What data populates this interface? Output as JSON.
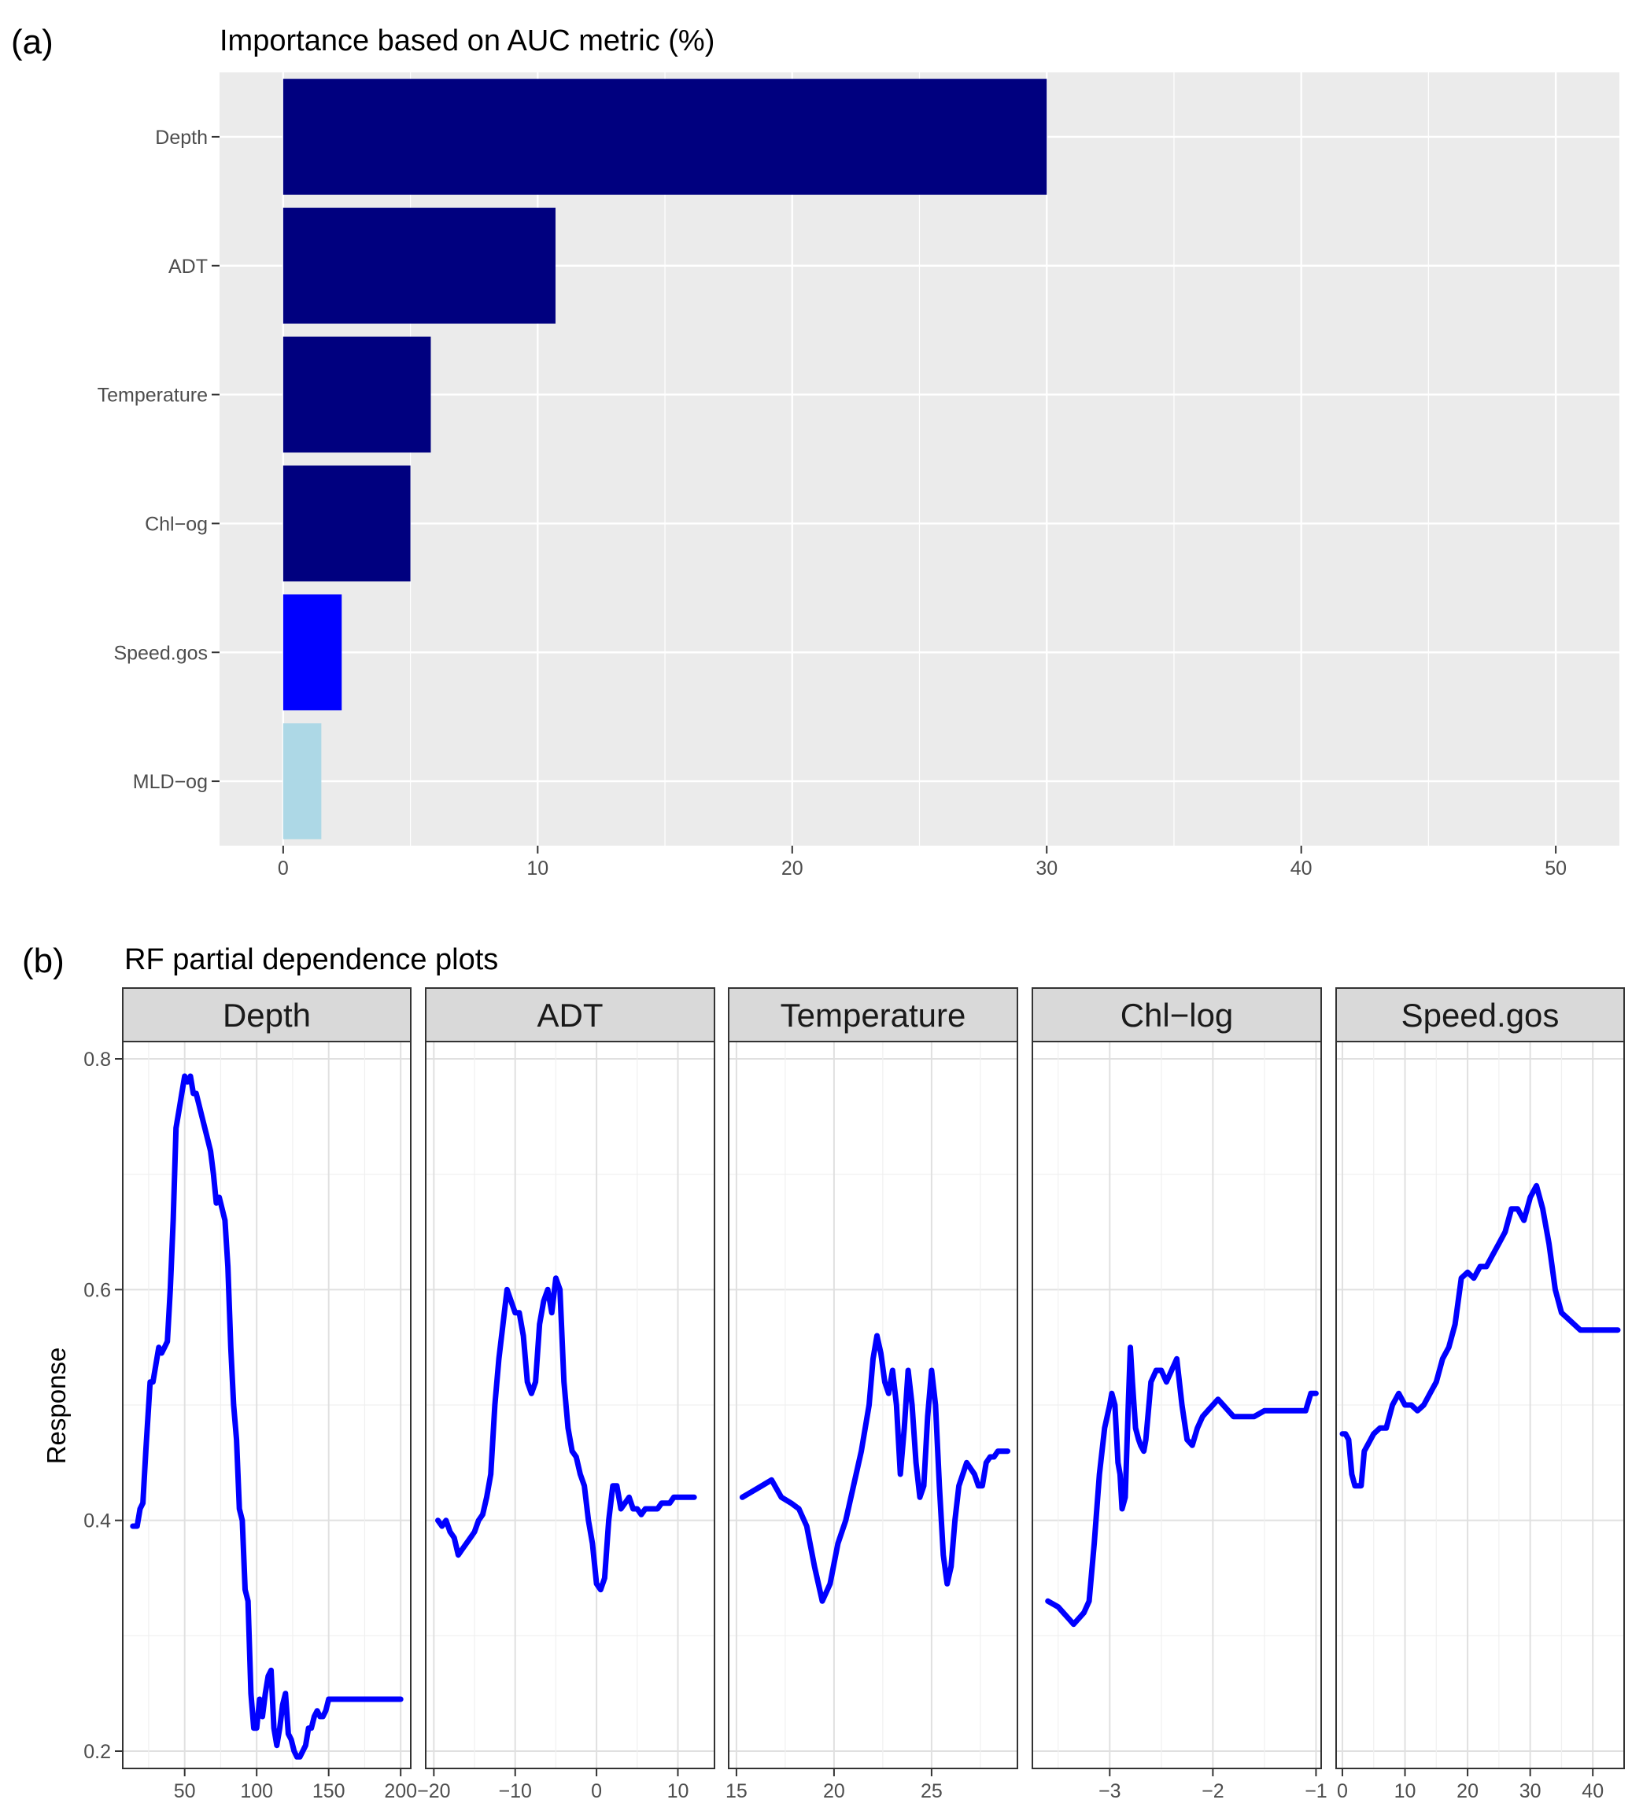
{
  "panel_a_label": "(a)",
  "panel_b_label": "(b)",
  "colors": {
    "navy": "#00007f",
    "blue": "#0000ff",
    "lightblue": "#add8e6",
    "line": "#0000ff",
    "panel_bg": "#ebebeb",
    "strip_bg": "#d9d9d9"
  },
  "chart_data": [
    {
      "type": "bar",
      "orientation": "horizontal",
      "title": "Importance based on AUC metric (%)",
      "categories": [
        "Depth",
        "ADT",
        "Temperature",
        "Chl−og",
        "Speed.gos",
        "MLD−og"
      ],
      "values": [
        30.0,
        10.7,
        5.8,
        5.0,
        2.3,
        1.5
      ],
      "bar_colors": [
        "navy",
        "navy",
        "navy",
        "navy",
        "blue",
        "lightblue"
      ],
      "xlim": [
        -2.5,
        52.5
      ],
      "xticks": [
        0,
        10,
        20,
        30,
        40,
        50
      ],
      "grid": true
    },
    {
      "type": "line",
      "title": "RF partial dependence plots",
      "ylabel": "Response",
      "ylim": [
        0.185,
        0.815
      ],
      "yticks": [
        0.2,
        0.4,
        0.6,
        0.8
      ],
      "grid": true,
      "facets": [
        {
          "name": "Depth",
          "xlim": [
            7,
            207
          ],
          "xticks": [
            50,
            100,
            150,
            200
          ],
          "x": [
            14,
            17,
            19,
            21,
            23,
            26,
            28,
            30,
            32,
            34,
            36,
            38,
            40,
            42,
            44,
            46,
            48,
            50,
            52,
            54,
            56,
            58,
            60,
            62,
            64,
            66,
            68,
            70,
            72,
            74,
            76,
            78,
            80,
            82,
            84,
            86,
            88,
            90,
            92,
            94,
            96,
            98,
            100,
            102,
            104,
            106,
            108,
            110,
            112,
            114,
            116,
            118,
            120,
            122,
            124,
            126,
            128,
            130,
            132,
            134,
            136,
            138,
            140,
            142,
            144,
            146,
            148,
            150,
            152,
            154,
            156,
            158,
            160,
            162,
            165,
            170,
            175,
            180,
            185,
            190,
            195,
            200
          ],
          "y": [
            0.395,
            0.395,
            0.41,
            0.415,
            0.46,
            0.52,
            0.52,
            0.535,
            0.55,
            0.545,
            0.55,
            0.555,
            0.6,
            0.66,
            0.74,
            0.755,
            0.77,
            0.785,
            0.78,
            0.785,
            0.77,
            0.77,
            0.76,
            0.75,
            0.74,
            0.73,
            0.72,
            0.7,
            0.675,
            0.68,
            0.67,
            0.66,
            0.62,
            0.55,
            0.5,
            0.47,
            0.41,
            0.4,
            0.34,
            0.33,
            0.25,
            0.22,
            0.22,
            0.245,
            0.23,
            0.25,
            0.265,
            0.27,
            0.22,
            0.205,
            0.22,
            0.24,
            0.25,
            0.215,
            0.21,
            0.2,
            0.195,
            0.195,
            0.2,
            0.205,
            0.22,
            0.22,
            0.23,
            0.235,
            0.23,
            0.23,
            0.235,
            0.245,
            0.245,
            0.245,
            0.245,
            0.245,
            0.245,
            0.245,
            0.245,
            0.245,
            0.245,
            0.245,
            0.245,
            0.245,
            0.245,
            0.245
          ]
        },
        {
          "name": "ADT",
          "xlim": [
            -21,
            14.5
          ],
          "xticks": [
            -20,
            -10,
            0,
            10
          ],
          "x": [
            -19.5,
            -19,
            -18.5,
            -18,
            -17.5,
            -17,
            -16.5,
            -16,
            -15.5,
            -15,
            -14.5,
            -14,
            -13.5,
            -13,
            -12.5,
            -12,
            -11.5,
            -11,
            -10.5,
            -10,
            -9.5,
            -9,
            -8.5,
            -8,
            -7.5,
            -7,
            -6.5,
            -6,
            -5.5,
            -5,
            -4.5,
            -4,
            -3.5,
            -3,
            -2.5,
            -2,
            -1.5,
            -1,
            -0.5,
            0,
            0.5,
            1,
            1.5,
            2,
            2.5,
            3,
            3.5,
            4,
            4.5,
            5,
            5.5,
            6,
            6.5,
            7,
            7.5,
            8,
            8.5,
            9,
            9.5,
            10,
            10.5,
            11,
            11.5,
            12
          ],
          "y": [
            0.4,
            0.395,
            0.4,
            0.39,
            0.385,
            0.37,
            0.375,
            0.38,
            0.385,
            0.39,
            0.4,
            0.405,
            0.42,
            0.44,
            0.5,
            0.54,
            0.57,
            0.6,
            0.59,
            0.58,
            0.58,
            0.56,
            0.52,
            0.51,
            0.52,
            0.57,
            0.59,
            0.6,
            0.58,
            0.61,
            0.6,
            0.52,
            0.48,
            0.46,
            0.455,
            0.44,
            0.43,
            0.4,
            0.38,
            0.345,
            0.34,
            0.35,
            0.4,
            0.43,
            0.43,
            0.41,
            0.415,
            0.42,
            0.41,
            0.41,
            0.405,
            0.41,
            0.41,
            0.41,
            0.41,
            0.415,
            0.415,
            0.415,
            0.42,
            0.42,
            0.42,
            0.42,
            0.42,
            0.42
          ]
        },
        {
          "name": "Temperature",
          "xlim": [
            14.6,
            29.4
          ],
          "xticks": [
            15,
            20,
            25
          ],
          "x": [
            15.3,
            15.8,
            16.3,
            16.8,
            17.3,
            17.8,
            18.2,
            18.6,
            19.0,
            19.4,
            19.8,
            20.2,
            20.6,
            21.0,
            21.4,
            21.8,
            22.0,
            22.2,
            22.4,
            22.6,
            22.8,
            23.0,
            23.2,
            23.4,
            23.6,
            23.8,
            24.0,
            24.2,
            24.4,
            24.6,
            24.8,
            25.0,
            25.2,
            25.4,
            25.6,
            25.8,
            26.0,
            26.2,
            26.4,
            26.6,
            26.8,
            27.0,
            27.2,
            27.4,
            27.6,
            27.8,
            28.0,
            28.2,
            28.4,
            28.6,
            28.9
          ],
          "y": [
            0.42,
            0.425,
            0.43,
            0.435,
            0.42,
            0.415,
            0.41,
            0.395,
            0.36,
            0.33,
            0.345,
            0.38,
            0.4,
            0.43,
            0.46,
            0.5,
            0.54,
            0.56,
            0.545,
            0.52,
            0.51,
            0.53,
            0.5,
            0.44,
            0.48,
            0.53,
            0.5,
            0.45,
            0.42,
            0.43,
            0.49,
            0.53,
            0.5,
            0.43,
            0.37,
            0.345,
            0.36,
            0.4,
            0.43,
            0.44,
            0.45,
            0.445,
            0.44,
            0.43,
            0.43,
            0.45,
            0.455,
            0.455,
            0.46,
            0.46,
            0.46
          ],
          "y_shape_fix": [
            0.42,
            0.425,
            0.43,
            0.435,
            0.42,
            0.415,
            0.41,
            0.395,
            0.36,
            0.33,
            0.345,
            0.38,
            0.4,
            0.43,
            0.46,
            0.5,
            0.54,
            0.56,
            0.545,
            0.52,
            0.51,
            0.53,
            0.5,
            0.44,
            0.48,
            0.53,
            0.5,
            0.45,
            0.42,
            0.43,
            0.49,
            0.53,
            0.5,
            0.43,
            0.37,
            0.345,
            0.36,
            0.4,
            0.43,
            0.44,
            0.45,
            0.445,
            0.44,
            0.43,
            0.43,
            0.45,
            0.455,
            0.455,
            0.46,
            0.46,
            0.46
          ]
        },
        {
          "name": "Chl−log",
          "xlim": [
            -3.75,
            -0.95
          ],
          "xticks": [
            -3,
            -2,
            -1
          ],
          "x": [
            -3.6,
            -3.5,
            -3.45,
            -3.4,
            -3.35,
            -3.3,
            -3.25,
            -3.2,
            -3.15,
            -3.1,
            -3.05,
            -3.0,
            -2.98,
            -2.95,
            -2.92,
            -2.9,
            -2.88,
            -2.85,
            -2.82,
            -2.8,
            -2.78,
            -2.75,
            -2.72,
            -2.7,
            -2.67,
            -2.65,
            -2.6,
            -2.55,
            -2.5,
            -2.45,
            -2.4,
            -2.35,
            -2.3,
            -2.25,
            -2.2,
            -2.15,
            -2.1,
            -2.05,
            -2.0,
            -1.95,
            -1.9,
            -1.8,
            -1.7,
            -1.6,
            -1.5,
            -1.4,
            -1.3,
            -1.2,
            -1.1,
            -1.05,
            -1.0
          ],
          "y": [
            0.33,
            0.325,
            0.32,
            0.315,
            0.31,
            0.315,
            0.32,
            0.33,
            0.38,
            0.44,
            0.48,
            0.5,
            0.51,
            0.5,
            0.45,
            0.44,
            0.41,
            0.42,
            0.5,
            0.55,
            0.52,
            0.48,
            0.47,
            0.465,
            0.46,
            0.47,
            0.52,
            0.53,
            0.53,
            0.52,
            0.53,
            0.54,
            0.5,
            0.47,
            0.465,
            0.48,
            0.49,
            0.495,
            0.5,
            0.505,
            0.5,
            0.49,
            0.49,
            0.49,
            0.495,
            0.495,
            0.495,
            0.495,
            0.495,
            0.51,
            0.51
          ]
        },
        {
          "name": "Speed.gos",
          "xlim": [
            -1,
            45
          ],
          "xticks": [
            0,
            10,
            20,
            30,
            40
          ],
          "x": [
            0,
            0.5,
            1,
            1.5,
            2,
            2.5,
            3,
            3.5,
            4,
            4.5,
            5,
            6,
            7,
            8,
            9,
            10,
            11,
            12,
            13,
            14,
            15,
            16,
            17,
            18,
            19,
            20,
            21,
            22,
            23,
            24,
            25,
            26,
            27,
            28,
            29,
            30,
            31,
            32,
            33,
            34,
            35,
            36,
            37,
            38,
            39,
            40,
            41,
            42,
            43,
            44
          ],
          "y": [
            0.475,
            0.475,
            0.47,
            0.44,
            0.43,
            0.43,
            0.43,
            0.46,
            0.465,
            0.47,
            0.475,
            0.48,
            0.48,
            0.5,
            0.51,
            0.5,
            0.5,
            0.495,
            0.5,
            0.51,
            0.52,
            0.54,
            0.55,
            0.57,
            0.61,
            0.615,
            0.61,
            0.62,
            0.62,
            0.63,
            0.64,
            0.65,
            0.67,
            0.67,
            0.66,
            0.68,
            0.69,
            0.67,
            0.64,
            0.6,
            0.58,
            0.575,
            0.57,
            0.565,
            0.565,
            0.565,
            0.565,
            0.565,
            0.565,
            0.565
          ]
        }
      ]
    }
  ]
}
